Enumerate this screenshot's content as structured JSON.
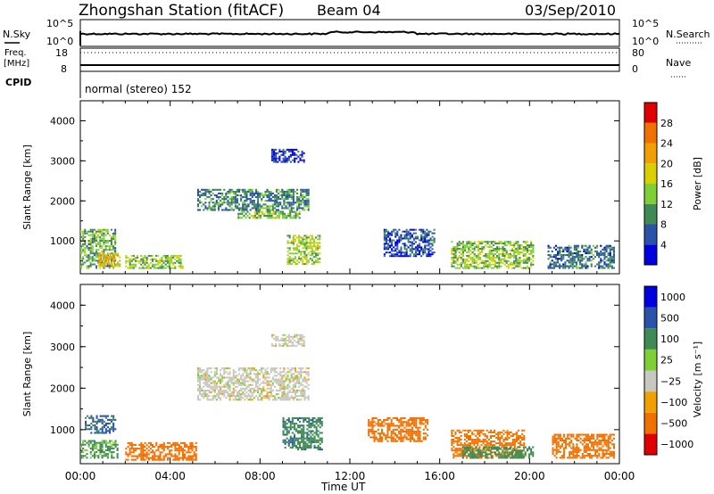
{
  "header": {
    "station": "Zhongshan Station (fitACF)",
    "beam": "Beam 04",
    "date": "03/Sep/2010"
  },
  "status_panels": {
    "nsky_label": "N.Sky",
    "nsky_ticks": [
      "10^5",
      "10^0"
    ],
    "nsearch_label": "N.Search",
    "nsearch_ticks": [
      "10^5",
      "10^0"
    ],
    "freq_label": "Freq.",
    "freq_unit": "[MHz]",
    "freq_ticks": [
      "18",
      "8"
    ],
    "nave_label": "Nave",
    "nave_ticks": [
      "80",
      "0"
    ],
    "cpid_label": "CPID",
    "cpid_text": "normal (stereo) 152"
  },
  "x_axis": {
    "label": "Time UT",
    "ticks": [
      "00:00",
      "04:00",
      "08:00",
      "12:00",
      "16:00",
      "20:00",
      "00:00"
    ]
  },
  "colors": {
    "power": [
      "#0000e0",
      "#2a52a8",
      "#3f8a55",
      "#7fd037",
      "#d8d000",
      "#f0a000",
      "#f07000",
      "#e00000"
    ],
    "velocity": [
      "#e00000",
      "#f07000",
      "#f0a000",
      "#c8c8c0",
      "#7fd037",
      "#3f8a55",
      "#2a52a8",
      "#0000e0"
    ]
  },
  "chart_data": [
    {
      "type": "heatmap",
      "parameter": "power",
      "ylabel": "Slant Range [km]",
      "xlabel": "Time UT",
      "x_range_hours": [
        0,
        24
      ],
      "ylim": [
        180,
        4500
      ],
      "y_ticks": [
        "1000",
        "2000",
        "3000",
        "4000"
      ],
      "colorbar": {
        "label": "Power [dB]",
        "ticks": [
          "4",
          "8",
          "12",
          "16",
          "20",
          "24",
          "28"
        ],
        "range": [
          0,
          30
        ]
      },
      "echo_regions": [
        {
          "t0": 0.0,
          "t1": 1.6,
          "r0": 300,
          "r1": 1300,
          "value": 12
        },
        {
          "t0": 0.8,
          "t1": 1.8,
          "r0": 350,
          "r1": 700,
          "value": 20
        },
        {
          "t0": 2.0,
          "t1": 4.6,
          "r0": 300,
          "r1": 650,
          "value": 14
        },
        {
          "t0": 5.2,
          "t1": 10.2,
          "r0": 1750,
          "r1": 2300,
          "value": 9
        },
        {
          "t0": 7.0,
          "t1": 9.8,
          "r0": 1550,
          "r1": 1750,
          "value": 13
        },
        {
          "t0": 8.5,
          "t1": 10.0,
          "r0": 2950,
          "r1": 3300,
          "value": 4
        },
        {
          "t0": 9.2,
          "t1": 10.7,
          "r0": 400,
          "r1": 1150,
          "value": 15
        },
        {
          "t0": 13.5,
          "t1": 15.8,
          "r0": 600,
          "r1": 1300,
          "value": 6
        },
        {
          "t0": 16.5,
          "t1": 20.2,
          "r0": 300,
          "r1": 1000,
          "value": 14
        },
        {
          "t0": 20.8,
          "t1": 23.8,
          "r0": 300,
          "r1": 900,
          "value": 8
        }
      ]
    },
    {
      "type": "heatmap",
      "parameter": "velocity",
      "ylabel": "Slant Range [km]",
      "xlabel": "Time UT",
      "x_range_hours": [
        0,
        24
      ],
      "ylim": [
        180,
        4500
      ],
      "y_ticks": [
        "1000",
        "2000",
        "3000",
        "4000"
      ],
      "colorbar": {
        "label": "Velocity [m s⁻¹]",
        "ticks": [
          "1000",
          "500",
          "100",
          "25",
          "−25",
          "−100",
          "−500",
          "−1000"
        ],
        "range": [
          -1000,
          1000
        ]
      },
      "echo_regions": [
        {
          "t0": 0.0,
          "t1": 1.7,
          "r0": 300,
          "r1": 750,
          "value": 120
        },
        {
          "t0": 0.2,
          "t1": 1.6,
          "r0": 900,
          "r1": 1350,
          "value": 600
        },
        {
          "t0": 2.0,
          "t1": 5.2,
          "r0": 250,
          "r1": 700,
          "value": -250
        },
        {
          "t0": 5.2,
          "t1": 10.2,
          "r0": 1700,
          "r1": 2500,
          "value": 0
        },
        {
          "t0": 8.5,
          "t1": 10.0,
          "r0": 3000,
          "r1": 3300,
          "value": 0
        },
        {
          "t0": 9.0,
          "t1": 10.8,
          "r0": 500,
          "r1": 1300,
          "value": 400
        },
        {
          "t0": 12.8,
          "t1": 15.5,
          "r0": 700,
          "r1": 1300,
          "value": -200
        },
        {
          "t0": 16.5,
          "t1": 19.8,
          "r0": 300,
          "r1": 1000,
          "value": -150
        },
        {
          "t0": 17.0,
          "t1": 20.2,
          "r0": 300,
          "r1": 600,
          "value": 150
        },
        {
          "t0": 21.0,
          "t1": 23.8,
          "r0": 300,
          "r1": 900,
          "value": -200
        }
      ]
    }
  ]
}
